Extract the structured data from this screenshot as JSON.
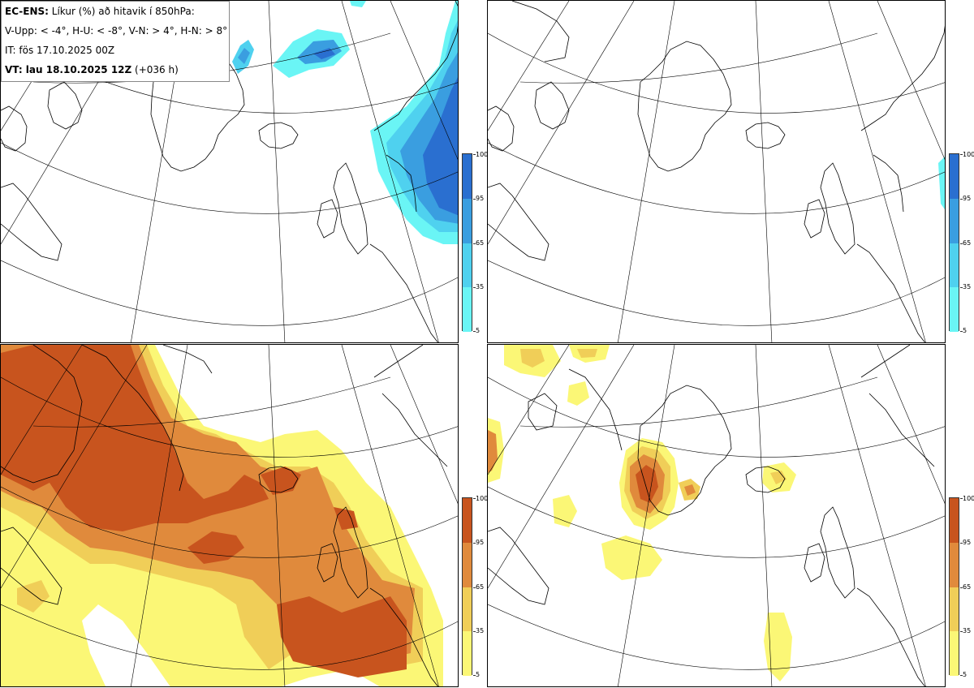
{
  "info": {
    "line1_bold": "EC-ENS:",
    "line1_rest": " Líkur (%) að hitavik í 850hPa:",
    "line2": "V-Upp: < -4°, H-U: < -8°, V-N: > 4°, H-N: > 8°",
    "line3": "IT: fös 17.10.2025 00Z",
    "line4_bold": "VT: lau 18.10.2025 12Z",
    "line4_rest": " (+036 h)"
  },
  "colorbar_ticks": [
    "100",
    "95",
    "65",
    "35",
    "5"
  ],
  "colors": {
    "cold": [
      "#6af5f5",
      "#4fd1ef",
      "#3a9ee0",
      "#2a6fd0"
    ],
    "warm": [
      "#fbf776",
      "#f0ce58",
      "#e08a3c",
      "#c8541e"
    ],
    "coast": "#000000",
    "grid": "#000000"
  },
  "panels": [
    {
      "name": "upper-left",
      "variable": "V-Upp",
      "palette": "cold"
    },
    {
      "name": "upper-right",
      "variable": "H-U",
      "palette": "cold"
    },
    {
      "name": "lower-left",
      "variable": "V-N",
      "palette": "warm"
    },
    {
      "name": "lower-right",
      "variable": "H-N",
      "palette": "warm"
    }
  ]
}
